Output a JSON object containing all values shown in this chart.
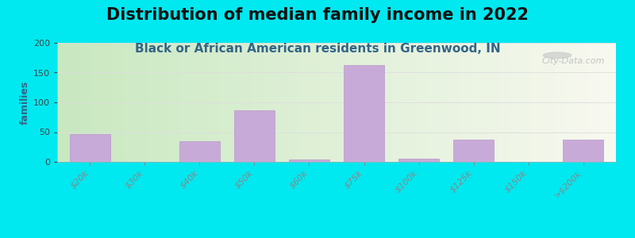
{
  "title": "Distribution of median family income in 2022",
  "subtitle": "Black or African American residents in Greenwood, IN",
  "ylabel": "families",
  "categories": [
    "$20k",
    "$30k",
    "$40k",
    "$50k",
    "$60k",
    "$75k",
    "$100k",
    "$125k",
    "$150k",
    ">$200k"
  ],
  "values": [
    47,
    0,
    35,
    87,
    4,
    163,
    5,
    37,
    0,
    38
  ],
  "bar_color": "#c8aad8",
  "bar_edge_color": "#b898cc",
  "background_outer": "#00e8f0",
  "grad_left": "#c8e8c0",
  "grad_right": "#f8f8f0",
  "ylim": [
    0,
    200
  ],
  "yticks": [
    0,
    50,
    100,
    150,
    200
  ],
  "title_fontsize": 15,
  "subtitle_fontsize": 11,
  "ylabel_fontsize": 9,
  "watermark_text": "City-Data.com",
  "tick_label_fontsize": 8,
  "title_color": "#111111",
  "subtitle_color": "#336688",
  "ylabel_color": "#336688"
}
